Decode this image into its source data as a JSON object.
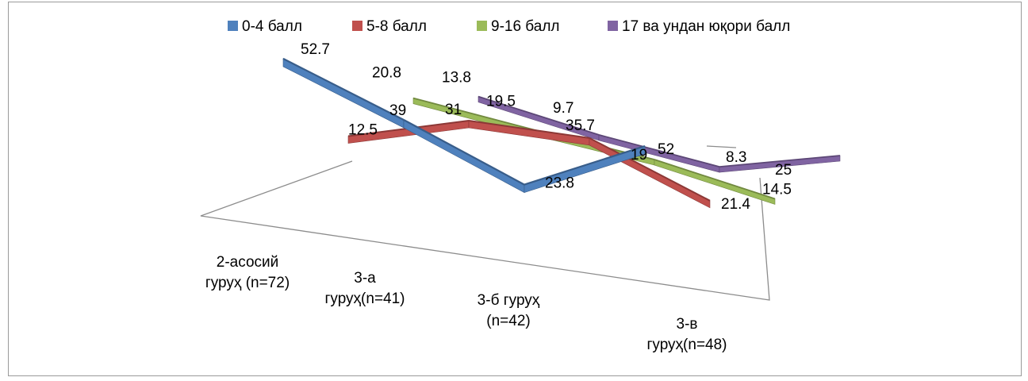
{
  "chart_data": {
    "type": "line",
    "title": "",
    "xlabel": "",
    "ylabel": "",
    "categories": [
      "2-асосий гуруҳ (n=72)",
      "3-а гуруҳ(n=41)",
      "3-б гуруҳ (n=42)",
      "3-в гуруҳ(n=48)"
    ],
    "category_lines": [
      [
        "2-асосий",
        "гуруҳ (n=72)"
      ],
      [
        "3-а",
        "гуруҳ(n=41)"
      ],
      [
        "3-б гуруҳ",
        "(n=42)"
      ],
      [
        "3-в",
        "гуруҳ(n=48)"
      ]
    ],
    "series": [
      {
        "name": "0-4 балл",
        "values": [
          52.7,
          39,
          23.8,
          52
        ]
      },
      {
        "name": "5-8 балл",
        "values": [
          12.5,
          31,
          35.7,
          21.4
        ]
      },
      {
        "name": "9-16 балл",
        "values": [
          20.8,
          19.5,
          19,
          14.5
        ]
      },
      {
        "name": "17 ва ундан юқори балл",
        "values": [
          13.8,
          9.7,
          8.3,
          25
        ]
      }
    ],
    "legend_position": "top",
    "grid": false,
    "style": "3d-line"
  },
  "colors": {
    "series": [
      "#4f81bd",
      "#c0504d",
      "#9bbb59",
      "#8064a2"
    ],
    "series_dark": [
      "#385d8a",
      "#8c3836",
      "#71893f",
      "#5c4776"
    ],
    "floor_line": "#8c8c8c",
    "frame_border": "#9a9a9a"
  }
}
